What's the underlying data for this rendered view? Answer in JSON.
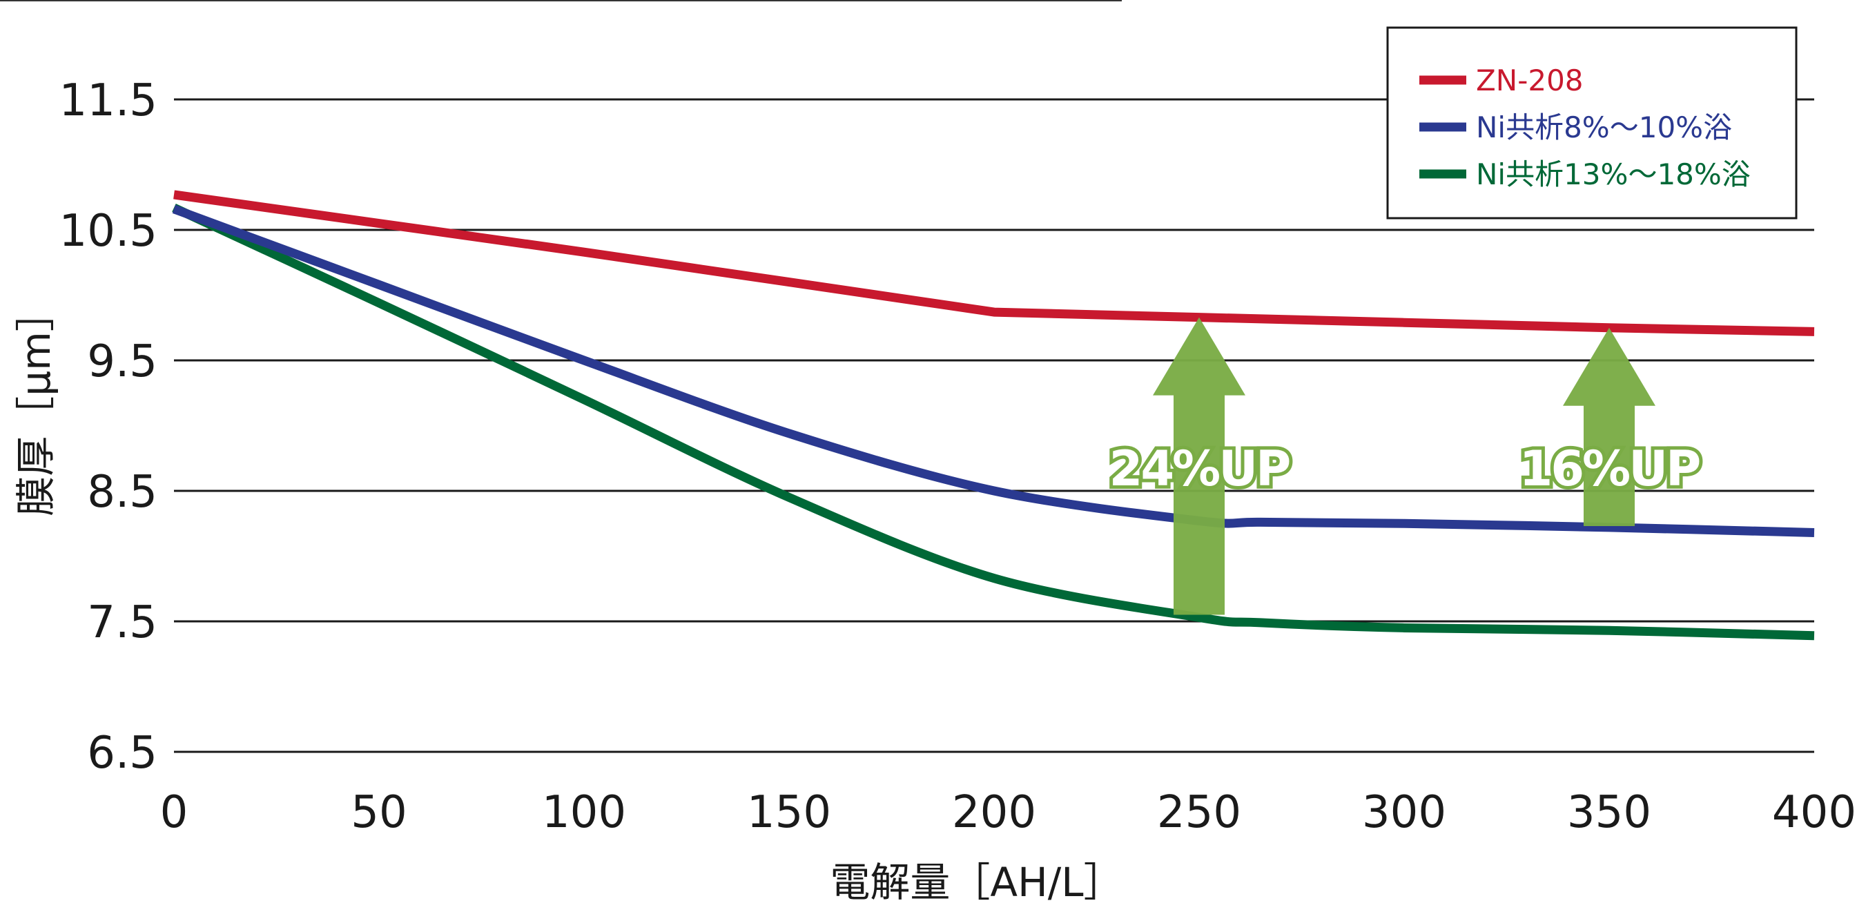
{
  "chart_data": {
    "type": "line",
    "title": "",
    "xlabel": "電解量［AH/L］",
    "ylabel": "膜厚［μm］",
    "xlim": [
      0,
      400
    ],
    "ylim": [
      6.5,
      11.5
    ],
    "x_ticks": [
      "0",
      "50",
      "100",
      "150",
      "200",
      "250",
      "300",
      "350",
      "400"
    ],
    "y_ticks": [
      "11.5",
      "10.5",
      "9.5",
      "8.5",
      "7.5",
      "6.5"
    ],
    "grid": "horizontal",
    "legend_position": "top-right",
    "series": [
      {
        "name": "ZN-208",
        "color": "#c8192e",
        "x": [
          0,
          50,
          100,
          150,
          200,
          250,
          300,
          350,
          400
        ],
        "y": [
          10.77,
          10.55,
          10.33,
          10.1,
          9.87,
          9.83,
          9.79,
          9.75,
          9.72
        ]
      },
      {
        "name": "Ni共析8%～10%浴",
        "color": "#2a3990",
        "x": [
          0,
          50,
          100,
          150,
          200,
          250,
          265,
          300,
          350,
          400
        ],
        "y": [
          10.66,
          10.08,
          9.5,
          8.94,
          8.5,
          8.27,
          8.26,
          8.25,
          8.22,
          8.18
        ]
      },
      {
        "name": "Ni共析13%～18%浴",
        "color": "#006837",
        "x": [
          0,
          50,
          100,
          150,
          200,
          250,
          265,
          300,
          350,
          400
        ],
        "y": [
          10.67,
          9.94,
          9.2,
          8.45,
          7.83,
          7.53,
          7.49,
          7.45,
          7.43,
          7.39
        ]
      }
    ],
    "annotations": [
      {
        "text": "24%UP",
        "x": 250,
        "y_from": 7.55,
        "y_to": 9.83,
        "color": "#7aac45"
      },
      {
        "text": "16%UP",
        "x": 350,
        "y_from": 8.23,
        "y_to": 9.75,
        "color": "#7aac45"
      }
    ]
  }
}
